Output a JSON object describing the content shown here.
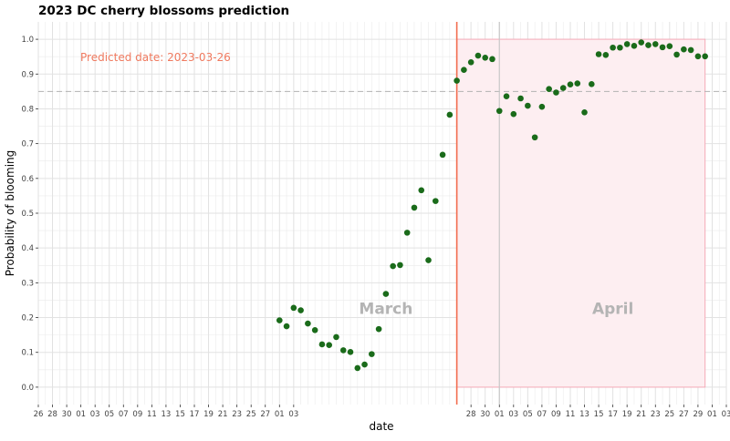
{
  "chart_data": {
    "type": "scatter",
    "title": "2023 DC cherry blossoms prediction",
    "xlabel": "date",
    "ylabel": "Probability of blooming",
    "xlim": [
      "2023-01-26",
      "2023-05-03"
    ],
    "ylim": [
      -0.05,
      1.05
    ],
    "y_ticks": [
      0.0,
      0.1,
      0.2,
      0.3,
      0.4,
      0.5,
      0.6,
      0.7,
      0.8,
      0.9,
      1.0
    ],
    "x_ticks": [
      {
        "date": "2023-01-26",
        "label": "26"
      },
      {
        "date": "2023-01-28",
        "label": "28"
      },
      {
        "date": "2023-01-30",
        "label": "30"
      },
      {
        "date": "2023-02-01",
        "label": "01"
      },
      {
        "date": "2023-02-03",
        "label": "03"
      },
      {
        "date": "2023-02-05",
        "label": "05"
      },
      {
        "date": "2023-02-07",
        "label": "07"
      },
      {
        "date": "2023-02-09",
        "label": "09"
      },
      {
        "date": "2023-02-11",
        "label": "11"
      },
      {
        "date": "2023-02-13",
        "label": "13"
      },
      {
        "date": "2023-02-15",
        "label": "15"
      },
      {
        "date": "2023-02-17",
        "label": "17"
      },
      {
        "date": "2023-02-19",
        "label": "19"
      },
      {
        "date": "2023-02-21",
        "label": "21"
      },
      {
        "date": "2023-02-23",
        "label": "23"
      },
      {
        "date": "2023-02-25",
        "label": "25"
      },
      {
        "date": "2023-02-27",
        "label": "27"
      },
      {
        "date": "2023-03-01",
        "label": "01"
      },
      {
        "date": "2023-03-03",
        "label": "03"
      },
      {
        "date": "2023-03-28",
        "label": "28"
      },
      {
        "date": "2023-03-30",
        "label": "30"
      },
      {
        "date": "2023-04-01",
        "label": "01"
      },
      {
        "date": "2023-04-03",
        "label": "03"
      },
      {
        "date": "2023-04-05",
        "label": "05"
      },
      {
        "date": "2023-04-07",
        "label": "07"
      },
      {
        "date": "2023-04-09",
        "label": "09"
      },
      {
        "date": "2023-04-11",
        "label": "11"
      },
      {
        "date": "2023-04-13",
        "label": "13"
      },
      {
        "date": "2023-04-15",
        "label": "15"
      },
      {
        "date": "2023-04-17",
        "label": "17"
      },
      {
        "date": "2023-04-19",
        "label": "19"
      },
      {
        "date": "2023-04-21",
        "label": "21"
      },
      {
        "date": "2023-04-23",
        "label": "23"
      },
      {
        "date": "2023-04-25",
        "label": "25"
      },
      {
        "date": "2023-04-27",
        "label": "27"
      },
      {
        "date": "2023-04-29",
        "label": "29"
      },
      {
        "date": "2023-05-01",
        "label": "01"
      },
      {
        "date": "2023-05-03",
        "label": "03"
      }
    ],
    "points": [
      {
        "x": "2023-03-01",
        "y": 0.192
      },
      {
        "x": "2023-03-02",
        "y": 0.175
      },
      {
        "x": "2023-03-03",
        "y": 0.228
      },
      {
        "x": "2023-03-04",
        "y": 0.221
      },
      {
        "x": "2023-03-05",
        "y": 0.183
      },
      {
        "x": "2023-03-06",
        "y": 0.164
      },
      {
        "x": "2023-03-07",
        "y": 0.123
      },
      {
        "x": "2023-03-08",
        "y": 0.121
      },
      {
        "x": "2023-03-09",
        "y": 0.144
      },
      {
        "x": "2023-03-10",
        "y": 0.106
      },
      {
        "x": "2023-03-11",
        "y": 0.101
      },
      {
        "x": "2023-03-12",
        "y": 0.055
      },
      {
        "x": "2023-03-13",
        "y": 0.065
      },
      {
        "x": "2023-03-14",
        "y": 0.095
      },
      {
        "x": "2023-03-15",
        "y": 0.167
      },
      {
        "x": "2023-03-16",
        "y": 0.268
      },
      {
        "x": "2023-03-17",
        "y": 0.348
      },
      {
        "x": "2023-03-18",
        "y": 0.351
      },
      {
        "x": "2023-03-19",
        "y": 0.444
      },
      {
        "x": "2023-03-20",
        "y": 0.516
      },
      {
        "x": "2023-03-21",
        "y": 0.566
      },
      {
        "x": "2023-03-22",
        "y": 0.365
      },
      {
        "x": "2023-03-23",
        "y": 0.535
      },
      {
        "x": "2023-03-24",
        "y": 0.668
      },
      {
        "x": "2023-03-25",
        "y": 0.783
      },
      {
        "x": "2023-03-26",
        "y": 0.881
      },
      {
        "x": "2023-03-27",
        "y": 0.912
      },
      {
        "x": "2023-03-28",
        "y": 0.934
      },
      {
        "x": "2023-03-29",
        "y": 0.953
      },
      {
        "x": "2023-03-30",
        "y": 0.947
      },
      {
        "x": "2023-03-31",
        "y": 0.943
      },
      {
        "x": "2023-04-01",
        "y": 0.794
      },
      {
        "x": "2023-04-02",
        "y": 0.836
      },
      {
        "x": "2023-04-03",
        "y": 0.785
      },
      {
        "x": "2023-04-04",
        "y": 0.83
      },
      {
        "x": "2023-04-05",
        "y": 0.809
      },
      {
        "x": "2023-04-06",
        "y": 0.718
      },
      {
        "x": "2023-04-07",
        "y": 0.806
      },
      {
        "x": "2023-04-08",
        "y": 0.857
      },
      {
        "x": "2023-04-09",
        "y": 0.847
      },
      {
        "x": "2023-04-10",
        "y": 0.86
      },
      {
        "x": "2023-04-11",
        "y": 0.87
      },
      {
        "x": "2023-04-12",
        "y": 0.873
      },
      {
        "x": "2023-04-13",
        "y": 0.79
      },
      {
        "x": "2023-04-14",
        "y": 0.871
      },
      {
        "x": "2023-04-15",
        "y": 0.957
      },
      {
        "x": "2023-04-16",
        "y": 0.955
      },
      {
        "x": "2023-04-17",
        "y": 0.976
      },
      {
        "x": "2023-04-18",
        "y": 0.976
      },
      {
        "x": "2023-04-19",
        "y": 0.986
      },
      {
        "x": "2023-04-20",
        "y": 0.981
      },
      {
        "x": "2023-04-21",
        "y": 0.991
      },
      {
        "x": "2023-04-22",
        "y": 0.983
      },
      {
        "x": "2023-04-23",
        "y": 0.986
      },
      {
        "x": "2023-04-24",
        "y": 0.977
      },
      {
        "x": "2023-04-25",
        "y": 0.98
      },
      {
        "x": "2023-04-26",
        "y": 0.956
      },
      {
        "x": "2023-04-27",
        "y": 0.971
      },
      {
        "x": "2023-04-28",
        "y": 0.969
      },
      {
        "x": "2023-04-29",
        "y": 0.951
      },
      {
        "x": "2023-04-30",
        "y": 0.951
      }
    ],
    "threshold": 0.85,
    "predicted_date": "2023-03-26",
    "predicted_label": "Predicted date: 2023-03-26",
    "april_start": "2023-04-01",
    "highlight_region": {
      "x_start": "2023-03-26",
      "x_end": "2023-04-30",
      "y_start": 0.0,
      "y_end": 1.0
    },
    "month_labels": [
      {
        "text": "March",
        "x": "2023-03-16",
        "y": 0.21
      },
      {
        "text": "April",
        "x": "2023-04-17",
        "y": 0.21
      }
    ],
    "grid": true,
    "colors": {
      "point": "#1a6b1a",
      "highlight_fill": "#fdeef1",
      "highlight_stroke": "#f4a9b8",
      "predicted_line": "#f26d4f",
      "predicted_text": "#f07a5f",
      "threshold_line": "#b3b3b3",
      "april_line": "#c8c8c8",
      "month_label": "#b4b4b4",
      "grid": "#ebebeb"
    }
  }
}
